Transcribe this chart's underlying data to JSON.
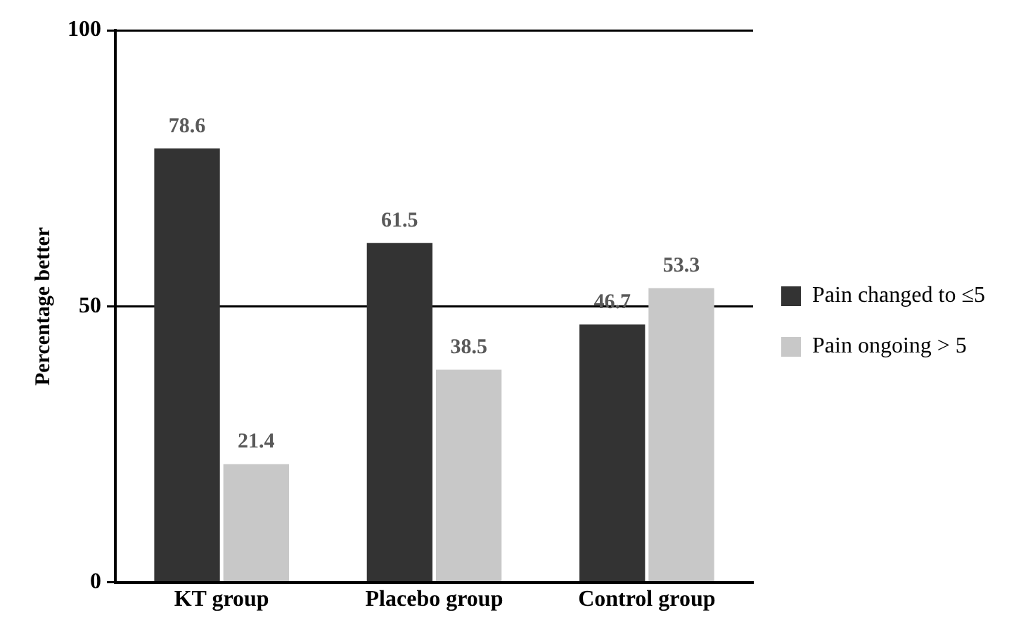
{
  "chart_data": {
    "type": "bar",
    "ylabel": "Percentage better",
    "categories": [
      "KT group",
      "Placebo group",
      "Control group"
    ],
    "series": [
      {
        "name": "Pain changed to ≤5",
        "color": "#333333",
        "values": [
          78.6,
          61.5,
          46.7
        ]
      },
      {
        "name": "Pain ongoing > 5",
        "color": "#c8c8c8",
        "values": [
          21.4,
          38.5,
          53.3
        ]
      }
    ],
    "ylim": [
      0,
      100
    ],
    "yticks": [
      0,
      50,
      100
    ],
    "grid": "y",
    "legend": "right",
    "data_labels": true
  }
}
